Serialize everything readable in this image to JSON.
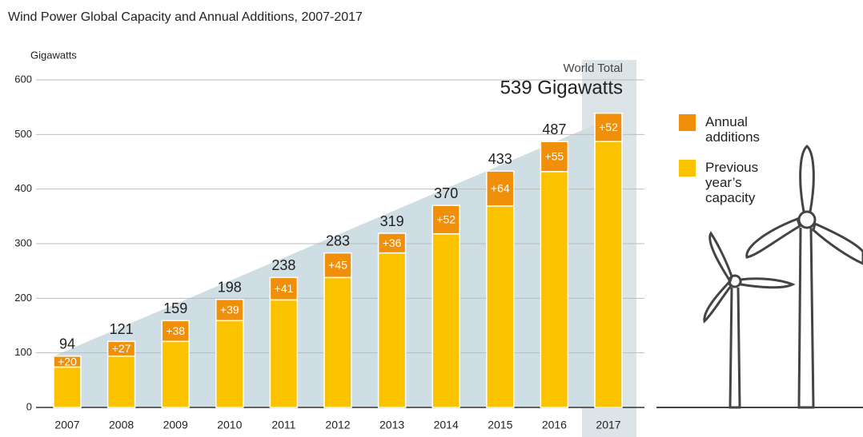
{
  "chart_data": {
    "type": "stacked-bar",
    "title": "Wind Power Global Capacity and Annual Additions, 2007-2017",
    "y_label": "Gigawatts",
    "annotation": {
      "line1": "World Total",
      "line2": "539 Gigawatts"
    },
    "categories": [
      "2007",
      "2008",
      "2009",
      "2010",
      "2011",
      "2012",
      "2013",
      "2014",
      "2015",
      "2016",
      "2017"
    ],
    "series": [
      {
        "name": "Previous year’s capacity",
        "color": "#fbc200",
        "values": [
          74,
          94,
          121,
          159,
          197,
          238,
          283,
          318,
          369,
          432,
          487
        ]
      },
      {
        "name": "Annual additions",
        "color": "#f0900a",
        "values": [
          20,
          27,
          38,
          39,
          41,
          45,
          36,
          52,
          64,
          55,
          52
        ],
        "value_labels": [
          "+20",
          "+27",
          "+38",
          "+39",
          "+41",
          "+45",
          "+36",
          "+52",
          "+64",
          "+55",
          "+52"
        ]
      }
    ],
    "totals": [
      94,
      121,
      159,
      198,
      238,
      283,
      319,
      370,
      433,
      487,
      539
    ],
    "ylim": [
      0,
      600
    ],
    "yticks": [
      0,
      100,
      200,
      300,
      400,
      500,
      600
    ],
    "grid": true
  }
}
